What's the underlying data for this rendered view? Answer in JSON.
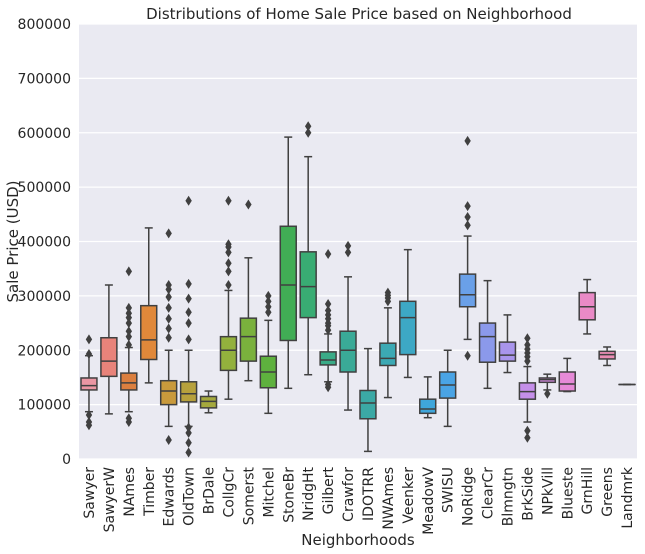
{
  "chart_data": {
    "type": "box",
    "title": "Distributions of Home Sale Price based on Neighborhood",
    "xlabel": "Neighborhoods",
    "ylabel": "Sale Price (USD)",
    "ylim": [
      0,
      800000
    ],
    "yticks": [
      0,
      100000,
      200000,
      300000,
      400000,
      500000,
      600000,
      700000,
      800000
    ],
    "grid": true,
    "background": "#eaeaf2",
    "categories": [
      "Sawyer",
      "SawyerW",
      "NAmes",
      "Timber",
      "Edwards",
      "OldTown",
      "BrDale",
      "CollgCr",
      "Somerst",
      "Mitchel",
      "StoneBr",
      "NridgHt",
      "Gilbert",
      "Crawfor",
      "IDOTRR",
      "NWAmes",
      "Veenker",
      "MeadowV",
      "SWISU",
      "NoRidge",
      "ClearCr",
      "Blmngtn",
      "BrkSide",
      "NPkVill",
      "Blueste",
      "GrnHill",
      "Greens",
      "Landmrk"
    ],
    "boxes": [
      {
        "name": "Sawyer",
        "color": "#ea96a3",
        "whislo": 87000,
        "q1": 127000,
        "median": 135000,
        "q3": 149000,
        "whishi": 190000,
        "fliers": [
          62000,
          68000,
          81000,
          193000,
          220000
        ]
      },
      {
        "name": "SawyerW",
        "color": "#e8837a",
        "whislo": 83000,
        "q1": 152000,
        "median": 180000,
        "q3": 223000,
        "whishi": 320000,
        "fliers": []
      },
      {
        "name": "NAmes",
        "color": "#db7f3f",
        "whislo": 87000,
        "q1": 127000,
        "median": 140000,
        "q3": 158000,
        "whishi": 205000,
        "fliers": [
          68000,
          75000,
          210000,
          225000,
          235000,
          250000,
          260000,
          268000,
          278000,
          345000
        ]
      },
      {
        "name": "Timber",
        "color": "#e0883a",
        "whislo": 140000,
        "q1": 183000,
        "median": 219000,
        "q3": 282000,
        "whishi": 425000,
        "fliers": []
      },
      {
        "name": "Edwards",
        "color": "#c99a3c",
        "whislo": 60000,
        "q1": 100000,
        "median": 125000,
        "q3": 144000,
        "whishi": 200000,
        "fliers": [
          35000,
          223000,
          240000,
          258000,
          278000,
          298000,
          312000,
          320000,
          415000
        ]
      },
      {
        "name": "OldTown",
        "color": "#b7a13c",
        "whislo": 60000,
        "q1": 105000,
        "median": 120000,
        "q3": 142000,
        "whishi": 200000,
        "fliers": [
          12000,
          30000,
          48000,
          58000,
          220000,
          250000,
          270000,
          295000,
          322000,
          475000
        ]
      },
      {
        "name": "BrDale",
        "color": "#a5a93d",
        "whislo": 85000,
        "q1": 94000,
        "median": 106000,
        "q3": 115000,
        "whishi": 125000,
        "fliers": []
      },
      {
        "name": "CollgCr",
        "color": "#93b13d",
        "whislo": 110000,
        "q1": 163000,
        "median": 200000,
        "q3": 225000,
        "whishi": 310000,
        "fliers": [
          320000,
          345000,
          360000,
          380000,
          390000,
          395000,
          475000
        ]
      },
      {
        "name": "Somerst",
        "color": "#7ab13d",
        "whislo": 144000,
        "q1": 180000,
        "median": 225000,
        "q3": 259000,
        "whishi": 370000,
        "fliers": [
          468000
        ]
      },
      {
        "name": "Mitchel",
        "color": "#5eb13e",
        "whislo": 84000,
        "q1": 131000,
        "median": 160000,
        "q3": 189000,
        "whishi": 255000,
        "fliers": [
          270000,
          280000,
          290000,
          300000
        ]
      },
      {
        "name": "StoneBr",
        "color": "#41ad55",
        "whislo": 130000,
        "q1": 218000,
        "median": 320000,
        "q3": 428000,
        "whishi": 592000,
        "fliers": []
      },
      {
        "name": "NridgHt",
        "color": "#39ac73",
        "whislo": 155000,
        "q1": 260000,
        "median": 317000,
        "q3": 381000,
        "whishi": 556000,
        "fliers": [
          600000,
          612000
        ]
      },
      {
        "name": "Gilbert",
        "color": "#3aab87",
        "whislo": 142000,
        "q1": 173000,
        "median": 182000,
        "q3": 197000,
        "whishi": 230000,
        "fliers": [
          132000,
          137000,
          237000,
          245000,
          250000,
          258000,
          265000,
          273000,
          285000,
          377000
        ]
      },
      {
        "name": "Crawfor",
        "color": "#3aaa97",
        "whislo": 90000,
        "q1": 160000,
        "median": 200000,
        "q3": 235000,
        "whishi": 335000,
        "fliers": [
          380000,
          392000
        ]
      },
      {
        "name": "IDOTRR",
        "color": "#3ba9a5",
        "whislo": 14000,
        "q1": 74000,
        "median": 103000,
        "q3": 126000,
        "whishi": 203000,
        "fliers": []
      },
      {
        "name": "NWAmes",
        "color": "#3ca9b4",
        "whislo": 113000,
        "q1": 172000,
        "median": 185000,
        "q3": 213000,
        "whishi": 278000,
        "fliers": [
          290000,
          296000,
          301000,
          306000
        ]
      },
      {
        "name": "Veenker",
        "color": "#3da8c5",
        "whislo": 150000,
        "q1": 192000,
        "median": 260000,
        "q3": 290000,
        "whishi": 385000,
        "fliers": []
      },
      {
        "name": "MeadowV",
        "color": "#3fa6db",
        "whislo": 76000,
        "q1": 84000,
        "median": 92000,
        "q3": 110000,
        "whishi": 151000,
        "fliers": []
      },
      {
        "name": "SWISU",
        "color": "#4aa4e5",
        "whislo": 60000,
        "q1": 112000,
        "median": 136000,
        "q3": 160000,
        "whishi": 200000,
        "fliers": []
      },
      {
        "name": "NoRidge",
        "color": "#6aa0e8",
        "whislo": 220000,
        "q1": 280000,
        "median": 302000,
        "q3": 340000,
        "whishi": 410000,
        "fliers": [
          190000,
          430000,
          445000,
          465000,
          585000
        ]
      },
      {
        "name": "ClearCr",
        "color": "#8b99eb",
        "whislo": 130000,
        "q1": 178000,
        "median": 225000,
        "q3": 250000,
        "whishi": 328000,
        "fliers": []
      },
      {
        "name": "Blmngtn",
        "color": "#a995ec",
        "whislo": 159000,
        "q1": 180000,
        "median": 191000,
        "q3": 215000,
        "whishi": 265000,
        "fliers": []
      },
      {
        "name": "BrkSide",
        "color": "#c58fe9",
        "whislo": 68000,
        "q1": 110000,
        "median": 124000,
        "q3": 140000,
        "whishi": 170000,
        "fliers": [
          39000,
          52000,
          180000,
          188000,
          195000,
          202000,
          210000,
          222000
        ]
      },
      {
        "name": "NPkVill",
        "color": "#d98ce6",
        "whislo": 127000,
        "q1": 141000,
        "median": 146000,
        "q3": 149000,
        "whishi": 156000,
        "fliers": [
          120000
        ]
      },
      {
        "name": "Blueste",
        "color": "#e68ad7",
        "whislo": 124000,
        "q1": 125000,
        "median": 138000,
        "q3": 160000,
        "whishi": 185000,
        "fliers": []
      },
      {
        "name": "GrnHill",
        "color": "#e98ac6",
        "whislo": 230000,
        "q1": 256000,
        "median": 280000,
        "q3": 306000,
        "whishi": 330000,
        "fliers": []
      },
      {
        "name": "Greens",
        "color": "#ea8db4",
        "whislo": 172000,
        "q1": 184000,
        "median": 192000,
        "q3": 198000,
        "whishi": 206000,
        "fliers": []
      },
      {
        "name": "Landmrk",
        "color": "#eb91a5",
        "whislo": 137000,
        "q1": 137000,
        "median": 137000,
        "q3": 137000,
        "whishi": 137000,
        "fliers": []
      }
    ]
  }
}
